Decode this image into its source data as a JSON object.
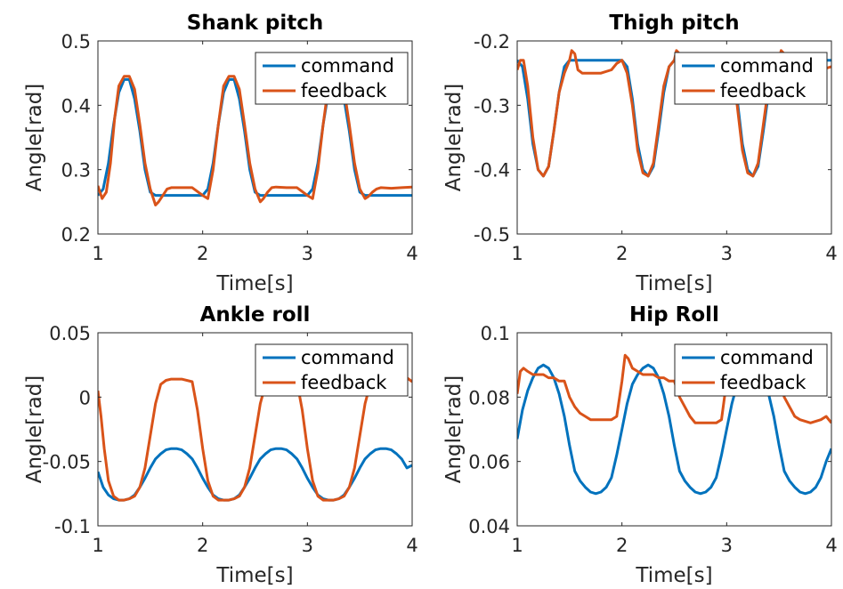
{
  "figure": {
    "layout": "2x2"
  },
  "chart_data": [
    {
      "type": "line",
      "title": "Shank pitch",
      "xlabel": "Time[s]",
      "ylabel": "Angle[rad]",
      "xlim": [
        1,
        4
      ],
      "ylim": [
        0.2,
        0.5
      ],
      "xticks": [
        1,
        2,
        3,
        4
      ],
      "xtick_labels": [
        "1",
        "2",
        "3",
        "4"
      ],
      "yticks": [
        0.2,
        0.3,
        0.4,
        0.5
      ],
      "ytick_labels": [
        "0.2",
        "0.3",
        "0.4",
        "0.5"
      ],
      "legend_position": "top-right",
      "series": [
        {
          "name": "command",
          "color": "#0072BD",
          "x": [
            1.0,
            1.05,
            1.1,
            1.15,
            1.2,
            1.25,
            1.3,
            1.35,
            1.4,
            1.45,
            1.5,
            1.55,
            1.6,
            2.0,
            2.05,
            2.1,
            2.15,
            2.2,
            2.25,
            2.3,
            2.35,
            2.4,
            2.45,
            2.5,
            2.55,
            2.6,
            3.0,
            3.05,
            3.1,
            3.15,
            3.2,
            3.25,
            3.3,
            3.35,
            3.4,
            3.45,
            3.5,
            3.55,
            3.6,
            4.0
          ],
          "y": [
            0.26,
            0.27,
            0.31,
            0.37,
            0.42,
            0.44,
            0.44,
            0.41,
            0.36,
            0.3,
            0.265,
            0.26,
            0.26,
            0.26,
            0.27,
            0.31,
            0.37,
            0.42,
            0.44,
            0.44,
            0.41,
            0.36,
            0.3,
            0.265,
            0.26,
            0.26,
            0.26,
            0.27,
            0.31,
            0.37,
            0.42,
            0.44,
            0.44,
            0.41,
            0.36,
            0.3,
            0.265,
            0.26,
            0.26,
            0.26
          ]
        },
        {
          "name": "feedback",
          "color": "#D95319",
          "x": [
            1.0,
            1.04,
            1.08,
            1.12,
            1.16,
            1.2,
            1.25,
            1.3,
            1.35,
            1.4,
            1.45,
            1.5,
            1.55,
            1.58,
            1.62,
            1.66,
            1.7,
            1.8,
            1.9,
            2.0,
            2.05,
            2.1,
            2.15,
            2.2,
            2.25,
            2.3,
            2.35,
            2.4,
            2.45,
            2.5,
            2.55,
            2.58,
            2.62,
            2.66,
            2.7,
            2.8,
            2.9,
            3.0,
            3.05,
            3.1,
            3.15,
            3.2,
            3.25,
            3.3,
            3.35,
            3.4,
            3.45,
            3.5,
            3.55,
            3.58,
            3.62,
            3.66,
            3.7,
            3.8,
            3.9,
            4.0
          ],
          "y": [
            0.275,
            0.255,
            0.265,
            0.31,
            0.38,
            0.43,
            0.445,
            0.445,
            0.425,
            0.37,
            0.31,
            0.27,
            0.245,
            0.25,
            0.26,
            0.27,
            0.272,
            0.272,
            0.272,
            0.26,
            0.255,
            0.3,
            0.37,
            0.43,
            0.445,
            0.445,
            0.425,
            0.37,
            0.31,
            0.27,
            0.25,
            0.255,
            0.265,
            0.272,
            0.273,
            0.272,
            0.272,
            0.26,
            0.255,
            0.3,
            0.37,
            0.43,
            0.445,
            0.445,
            0.425,
            0.37,
            0.31,
            0.27,
            0.255,
            0.258,
            0.265,
            0.27,
            0.272,
            0.271,
            0.272,
            0.273
          ]
        }
      ]
    },
    {
      "type": "line",
      "title": "Thigh pitch",
      "xlabel": "Time[s]",
      "ylabel": "Angle[rad]",
      "xlim": [
        1,
        4
      ],
      "ylim": [
        -0.5,
        -0.2
      ],
      "xticks": [
        1,
        2,
        3,
        4
      ],
      "xtick_labels": [
        "1",
        "2",
        "3",
        "4"
      ],
      "yticks": [
        -0.5,
        -0.4,
        -0.3,
        -0.2
      ],
      "ytick_labels": [
        "-0.5",
        "-0.4",
        "-0.3",
        "-0.2"
      ],
      "legend_position": "top-right",
      "series": [
        {
          "name": "command",
          "color": "#0072BD",
          "x": [
            1.0,
            1.05,
            1.1,
            1.15,
            1.2,
            1.25,
            1.3,
            1.35,
            1.4,
            1.45,
            1.5,
            1.55,
            2.0,
            2.05,
            2.1,
            2.15,
            2.2,
            2.25,
            2.3,
            2.35,
            2.4,
            2.45,
            2.5,
            2.55,
            3.0,
            3.05,
            3.1,
            3.15,
            3.2,
            3.25,
            3.3,
            3.35,
            3.4,
            3.45,
            3.5,
            3.55,
            4.0
          ],
          "y": [
            -0.23,
            -0.24,
            -0.29,
            -0.36,
            -0.4,
            -0.41,
            -0.395,
            -0.34,
            -0.28,
            -0.24,
            -0.23,
            -0.23,
            -0.23,
            -0.24,
            -0.29,
            -0.36,
            -0.4,
            -0.41,
            -0.395,
            -0.34,
            -0.28,
            -0.24,
            -0.23,
            -0.23,
            -0.23,
            -0.24,
            -0.29,
            -0.36,
            -0.4,
            -0.41,
            -0.395,
            -0.34,
            -0.28,
            -0.24,
            -0.23,
            -0.23,
            -0.23
          ]
        },
        {
          "name": "feedback",
          "color": "#D95319",
          "x": [
            1.0,
            1.03,
            1.06,
            1.1,
            1.15,
            1.2,
            1.25,
            1.3,
            1.35,
            1.4,
            1.45,
            1.5,
            1.52,
            1.55,
            1.58,
            1.62,
            1.7,
            1.8,
            1.9,
            1.95,
            2.0,
            2.05,
            2.1,
            2.15,
            2.2,
            2.25,
            2.3,
            2.35,
            2.4,
            2.45,
            2.5,
            2.52,
            2.55,
            2.58,
            2.62,
            2.7,
            2.8,
            2.9,
            2.95,
            3.0,
            3.05,
            3.1,
            3.15,
            3.2,
            3.25,
            3.3,
            3.35,
            3.4,
            3.45,
            3.5,
            3.52,
            3.55,
            3.58,
            3.62,
            3.7,
            3.8,
            3.9,
            4.0
          ],
          "y": [
            -0.245,
            -0.23,
            -0.23,
            -0.27,
            -0.35,
            -0.4,
            -0.41,
            -0.395,
            -0.34,
            -0.28,
            -0.25,
            -0.23,
            -0.215,
            -0.22,
            -0.245,
            -0.25,
            -0.25,
            -0.25,
            -0.245,
            -0.235,
            -0.23,
            -0.25,
            -0.3,
            -0.37,
            -0.405,
            -0.41,
            -0.39,
            -0.33,
            -0.27,
            -0.24,
            -0.23,
            -0.215,
            -0.22,
            -0.245,
            -0.25,
            -0.25,
            -0.25,
            -0.245,
            -0.235,
            -0.23,
            -0.25,
            -0.3,
            -0.37,
            -0.405,
            -0.41,
            -0.39,
            -0.33,
            -0.27,
            -0.24,
            -0.23,
            -0.215,
            -0.22,
            -0.245,
            -0.25,
            -0.25,
            -0.25,
            -0.245,
            -0.24
          ]
        }
      ]
    },
    {
      "type": "line",
      "title": "Ankle roll",
      "xlabel": "Time[s]",
      "ylabel": "Angle[rad]",
      "xlim": [
        1,
        4
      ],
      "ylim": [
        -0.1,
        0.05
      ],
      "xticks": [
        1,
        2,
        3,
        4
      ],
      "xtick_labels": [
        "1",
        "2",
        "3",
        "4"
      ],
      "yticks": [
        -0.1,
        -0.05,
        0,
        0.05
      ],
      "ytick_labels": [
        "-0.1",
        "-0.05",
        "0",
        "0.05"
      ],
      "legend_position": "top-right",
      "series": [
        {
          "name": "command",
          "color": "#0072BD",
          "x": [
            1.0,
            1.05,
            1.1,
            1.15,
            1.2,
            1.25,
            1.3,
            1.35,
            1.4,
            1.45,
            1.5,
            1.55,
            1.6,
            1.65,
            1.7,
            1.75,
            1.8,
            1.85,
            1.9,
            1.95,
            2.0,
            2.05,
            2.1,
            2.15,
            2.2,
            2.25,
            2.3,
            2.35,
            2.4,
            2.45,
            2.5,
            2.55,
            2.6,
            2.65,
            2.7,
            2.75,
            2.8,
            2.85,
            2.9,
            2.95,
            3.0,
            3.05,
            3.1,
            3.15,
            3.2,
            3.25,
            3.3,
            3.35,
            3.4,
            3.45,
            3.5,
            3.55,
            3.6,
            3.65,
            3.7,
            3.75,
            3.8,
            3.85,
            3.9,
            3.95,
            4.0
          ],
          "y": [
            -0.058,
            -0.07,
            -0.076,
            -0.079,
            -0.08,
            -0.08,
            -0.079,
            -0.076,
            -0.07,
            -0.063,
            -0.055,
            -0.048,
            -0.044,
            -0.041,
            -0.04,
            -0.04,
            -0.041,
            -0.044,
            -0.048,
            -0.055,
            -0.063,
            -0.07,
            -0.076,
            -0.079,
            -0.08,
            -0.08,
            -0.079,
            -0.076,
            -0.07,
            -0.063,
            -0.055,
            -0.048,
            -0.044,
            -0.041,
            -0.04,
            -0.04,
            -0.041,
            -0.044,
            -0.048,
            -0.055,
            -0.063,
            -0.07,
            -0.076,
            -0.079,
            -0.08,
            -0.08,
            -0.079,
            -0.076,
            -0.07,
            -0.063,
            -0.055,
            -0.048,
            -0.044,
            -0.041,
            -0.04,
            -0.04,
            -0.041,
            -0.044,
            -0.048,
            -0.055,
            -0.053
          ]
        },
        {
          "name": "feedback",
          "color": "#D95319",
          "x": [
            1.0,
            1.03,
            1.06,
            1.1,
            1.15,
            1.2,
            1.25,
            1.3,
            1.35,
            1.4,
            1.45,
            1.5,
            1.55,
            1.6,
            1.65,
            1.7,
            1.8,
            1.9,
            1.95,
            2.0,
            2.05,
            2.1,
            2.15,
            2.2,
            2.25,
            2.3,
            2.35,
            2.4,
            2.45,
            2.5,
            2.55,
            2.6,
            2.65,
            2.7,
            2.8,
            2.9,
            2.95,
            3.0,
            3.05,
            3.1,
            3.15,
            3.2,
            3.25,
            3.3,
            3.35,
            3.4,
            3.45,
            3.5,
            3.55,
            3.6,
            3.65,
            3.7,
            3.8,
            3.9,
            3.95,
            4.0
          ],
          "y": [
            0.005,
            -0.015,
            -0.04,
            -0.065,
            -0.077,
            -0.08,
            -0.08,
            -0.079,
            -0.077,
            -0.07,
            -0.055,
            -0.03,
            -0.005,
            0.01,
            0.013,
            0.014,
            0.014,
            0.012,
            -0.01,
            -0.04,
            -0.065,
            -0.077,
            -0.08,
            -0.08,
            -0.08,
            -0.079,
            -0.077,
            -0.07,
            -0.055,
            -0.03,
            -0.005,
            0.01,
            0.013,
            0.014,
            0.014,
            0.012,
            -0.01,
            -0.04,
            -0.065,
            -0.077,
            -0.08,
            -0.08,
            -0.08,
            -0.079,
            -0.077,
            -0.07,
            -0.055,
            -0.03,
            -0.005,
            0.01,
            0.013,
            0.014,
            0.014,
            0.016,
            0.015,
            0.012
          ]
        }
      ]
    },
    {
      "type": "line",
      "title": "Hip Roll",
      "xlabel": "Time[s]",
      "ylabel": "Angle[rad]",
      "xlim": [
        1,
        4
      ],
      "ylim": [
        0.04,
        0.1
      ],
      "xticks": [
        1,
        2,
        3,
        4
      ],
      "xtick_labels": [
        "1",
        "2",
        "3",
        "4"
      ],
      "yticks": [
        0.04,
        0.06,
        0.08,
        0.1
      ],
      "ytick_labels": [
        "0.04",
        "0.06",
        "0.08",
        "0.1"
      ],
      "legend_position": "top-right",
      "series": [
        {
          "name": "command",
          "color": "#0072BD",
          "x": [
            1.0,
            1.05,
            1.1,
            1.15,
            1.2,
            1.25,
            1.3,
            1.35,
            1.4,
            1.45,
            1.5,
            1.55,
            1.6,
            1.65,
            1.7,
            1.75,
            1.8,
            1.85,
            1.9,
            1.95,
            2.0,
            2.05,
            2.1,
            2.15,
            2.2,
            2.25,
            2.3,
            2.35,
            2.4,
            2.45,
            2.5,
            2.55,
            2.6,
            2.65,
            2.7,
            2.75,
            2.8,
            2.85,
            2.9,
            2.95,
            3.0,
            3.05,
            3.1,
            3.15,
            3.2,
            3.25,
            3.3,
            3.35,
            3.4,
            3.45,
            3.5,
            3.55,
            3.6,
            3.65,
            3.7,
            3.75,
            3.8,
            3.85,
            3.9,
            3.95,
            4.0
          ],
          "y": [
            0.067,
            0.076,
            0.082,
            0.086,
            0.089,
            0.09,
            0.089,
            0.086,
            0.081,
            0.074,
            0.065,
            0.057,
            0.054,
            0.052,
            0.0505,
            0.05,
            0.0505,
            0.052,
            0.055,
            0.062,
            0.07,
            0.078,
            0.084,
            0.087,
            0.089,
            0.09,
            0.089,
            0.086,
            0.081,
            0.074,
            0.065,
            0.057,
            0.054,
            0.052,
            0.0505,
            0.05,
            0.0505,
            0.052,
            0.055,
            0.062,
            0.07,
            0.078,
            0.084,
            0.087,
            0.089,
            0.09,
            0.089,
            0.086,
            0.081,
            0.074,
            0.065,
            0.057,
            0.054,
            0.052,
            0.0505,
            0.05,
            0.0505,
            0.052,
            0.055,
            0.06,
            0.064
          ]
        },
        {
          "name": "feedback",
          "color": "#D95319",
          "x": [
            1.0,
            1.03,
            1.06,
            1.1,
            1.15,
            1.2,
            1.25,
            1.3,
            1.35,
            1.4,
            1.45,
            1.5,
            1.55,
            1.6,
            1.65,
            1.7,
            1.8,
            1.9,
            1.95,
            2.0,
            2.03,
            2.06,
            2.1,
            2.15,
            2.2,
            2.25,
            2.3,
            2.35,
            2.4,
            2.45,
            2.5,
            2.55,
            2.6,
            2.65,
            2.7,
            2.8,
            2.9,
            2.95,
            3.0,
            3.03,
            3.06,
            3.1,
            3.15,
            3.2,
            3.25,
            3.3,
            3.35,
            3.4,
            3.45,
            3.5,
            3.55,
            3.6,
            3.65,
            3.7,
            3.8,
            3.9,
            3.95,
            4.0
          ],
          "y": [
            0.081,
            0.088,
            0.089,
            0.088,
            0.087,
            0.087,
            0.087,
            0.086,
            0.086,
            0.085,
            0.085,
            0.08,
            0.077,
            0.075,
            0.074,
            0.073,
            0.073,
            0.073,
            0.074,
            0.085,
            0.093,
            0.092,
            0.089,
            0.088,
            0.087,
            0.087,
            0.087,
            0.086,
            0.086,
            0.085,
            0.085,
            0.08,
            0.077,
            0.074,
            0.072,
            0.072,
            0.072,
            0.073,
            0.085,
            0.093,
            0.092,
            0.089,
            0.088,
            0.087,
            0.087,
            0.087,
            0.086,
            0.086,
            0.085,
            0.085,
            0.08,
            0.077,
            0.074,
            0.073,
            0.072,
            0.073,
            0.074,
            0.072
          ]
        }
      ]
    }
  ]
}
